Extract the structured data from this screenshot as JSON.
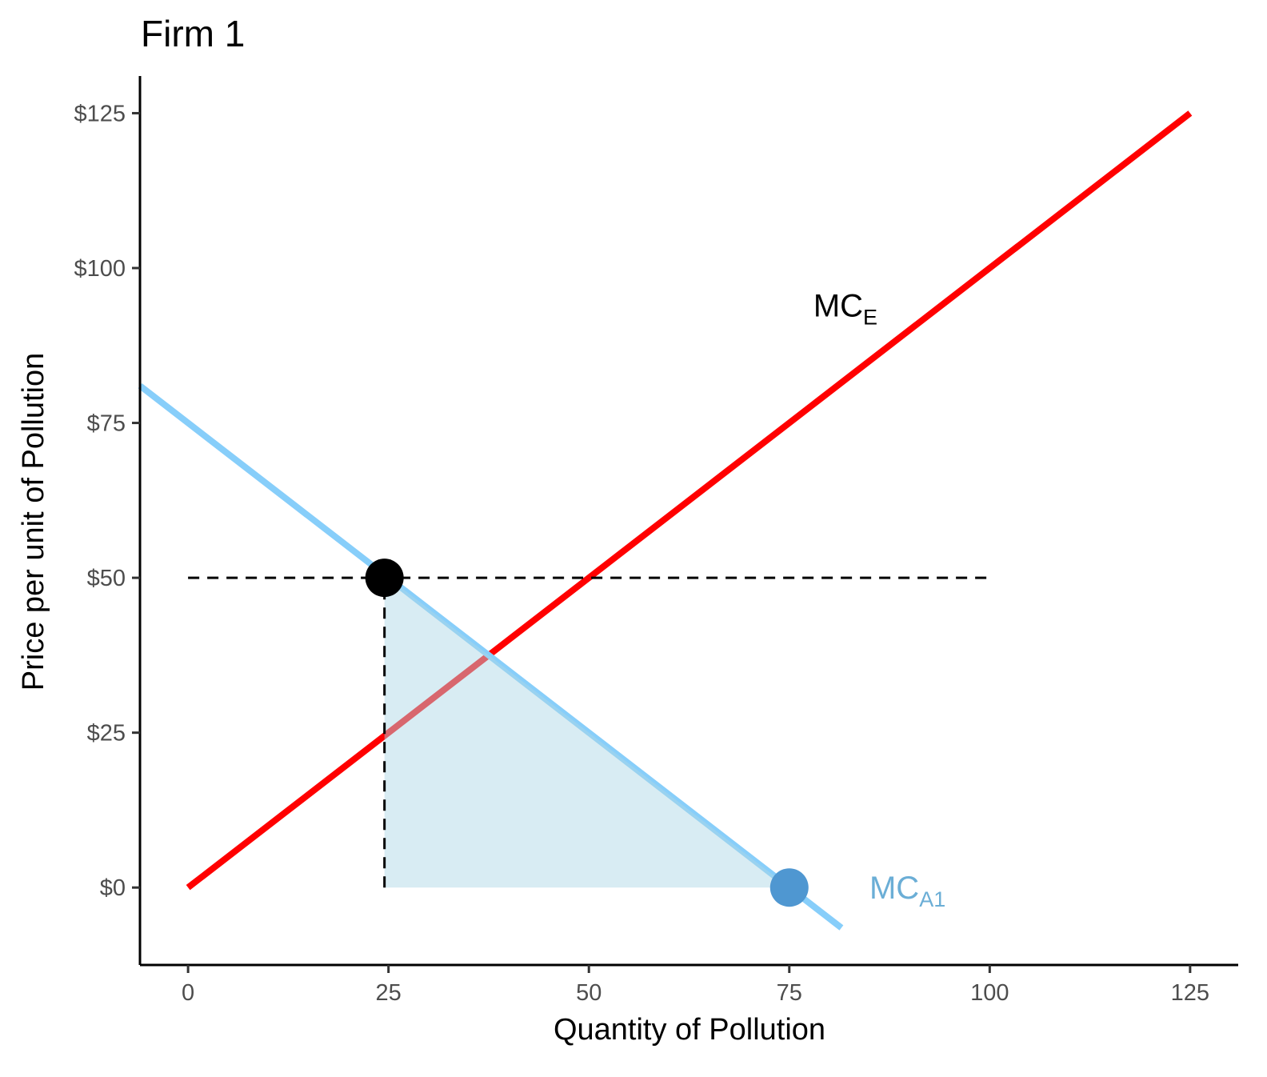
{
  "chart_data": {
    "type": "line",
    "title": "Firm 1",
    "xlabel": "Quantity of Pollution",
    "ylabel": "Price per unit of Pollution",
    "xlim": [
      -6,
      131
    ],
    "ylim": [
      -12.5,
      131
    ],
    "x_ticks": [
      0,
      25,
      50,
      75,
      100,
      125
    ],
    "x_tick_labels": [
      "0",
      "25",
      "50",
      "75",
      "100",
      "125"
    ],
    "y_ticks": [
      0,
      25,
      50,
      75,
      100,
      125
    ],
    "y_tick_labels": [
      "$0",
      "$25",
      "$50",
      "$75",
      "$100",
      "$125"
    ],
    "grid": false,
    "series": [
      {
        "id": "mc_a1",
        "label_main": "MC",
        "label_sub": "A1",
        "label_at": [
          85,
          0
        ],
        "color": "#87cefa",
        "label_color": "#6baed6",
        "x": [
          -6,
          81.5
        ],
        "y": [
          81,
          -6.5
        ]
      },
      {
        "id": "mc_e",
        "label_main": "MC",
        "label_sub": "E",
        "label_at": [
          78,
          94
        ],
        "color": "#ff0000",
        "label_color": "#000000",
        "x": [
          0,
          125
        ],
        "y": [
          0,
          125
        ]
      }
    ],
    "shaded_region": {
      "color": "#add8e6",
      "opacity": 0.48,
      "x": [
        24.5,
        25,
        75,
        24.5
      ],
      "y": [
        50,
        50,
        0,
        0
      ]
    },
    "reference_lines": [
      {
        "type": "horizontal",
        "y": 50,
        "x_from": 0,
        "x_to": 100
      },
      {
        "type": "vertical",
        "x": 24.5,
        "y_from": 0,
        "y_to": 50
      }
    ],
    "points": [
      {
        "x": 24.5,
        "y": 50,
        "color": "#000000"
      },
      {
        "x": 75,
        "y": 0,
        "color": "#4f97d1"
      }
    ]
  }
}
